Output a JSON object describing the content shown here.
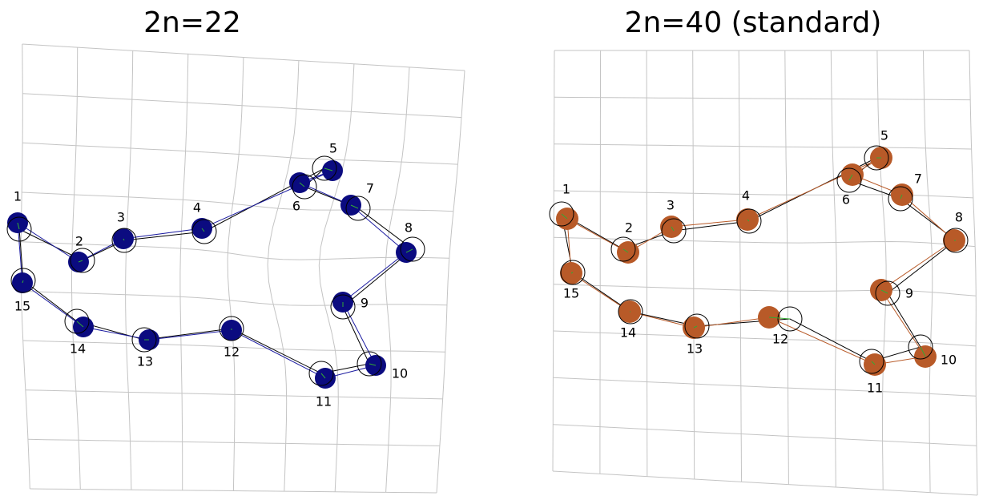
{
  "panels": [
    {
      "title": "2n=22",
      "fill_color": "#0b0b80",
      "line_color": "#1a1aa0",
      "landmarks": [
        {
          "label": "1"
        },
        {
          "label": "2"
        },
        {
          "label": "3"
        },
        {
          "label": "4"
        },
        {
          "label": "5"
        },
        {
          "label": "6"
        },
        {
          "label": "7"
        },
        {
          "label": "8"
        },
        {
          "label": "9"
        },
        {
          "label": "10"
        },
        {
          "label": "11"
        },
        {
          "label": "12"
        },
        {
          "label": "13"
        },
        {
          "label": "14"
        },
        {
          "label": "15"
        }
      ]
    },
    {
      "title": "2n=40 (standard)",
      "fill_color": "#b85a28",
      "line_color": "#b85a28",
      "landmarks": [
        {
          "label": "1"
        },
        {
          "label": "2"
        },
        {
          "label": "3"
        },
        {
          "label": "4"
        },
        {
          "label": "5"
        },
        {
          "label": "6"
        },
        {
          "label": "7"
        },
        {
          "label": "8"
        },
        {
          "label": "9"
        },
        {
          "label": "10"
        },
        {
          "label": "11"
        },
        {
          "label": "12"
        },
        {
          "label": "13"
        },
        {
          "label": "14"
        },
        {
          "label": "15"
        }
      ]
    }
  ],
  "colors": {
    "grid": "#c4c4c4",
    "reference": "#000000",
    "displacement": "#33aa33"
  }
}
